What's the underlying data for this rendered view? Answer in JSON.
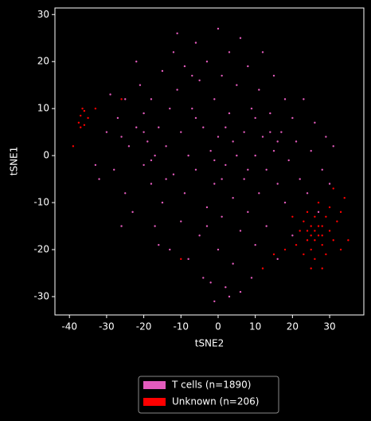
{
  "chart_data": {
    "type": "scatter",
    "xlabel": "tSNE2",
    "ylabel": "tSNE1",
    "xlim": [
      -43.9,
      39.2
    ],
    "ylim": [
      -33.9,
      31.4
    ],
    "xticks": [
      -40,
      -30,
      -20,
      -10,
      0,
      10,
      20,
      30
    ],
    "yticks": [
      -30,
      -20,
      -10,
      0,
      10,
      20,
      30
    ],
    "legend": "bottom",
    "series": [
      {
        "name": "T cells (n=1890)",
        "color": "#e35bbd",
        "x": [
          -30,
          -28,
          -27,
          -25,
          -25,
          -24,
          -23,
          -22,
          -21,
          -20,
          -20,
          -19,
          -18,
          -18,
          -17,
          -17,
          -16,
          -15,
          -15,
          -14,
          -13,
          -13,
          -12,
          -12,
          -11,
          -10,
          -10,
          -9,
          -9,
          -8,
          -8,
          -7,
          -6,
          -6,
          -5,
          -5,
          -4,
          -4,
          -3,
          -3,
          -2,
          -2,
          -1,
          -1,
          0,
          0,
          0,
          1,
          1,
          2,
          2,
          3,
          3,
          4,
          4,
          5,
          5,
          6,
          6,
          7,
          7,
          8,
          8,
          9,
          9,
          10,
          10,
          11,
          11,
          12,
          12,
          13,
          13,
          14,
          15,
          15,
          16,
          16,
          17,
          18,
          18,
          19,
          20,
          20,
          21,
          22,
          23,
          24,
          25,
          26,
          27,
          28,
          29,
          30,
          31,
          -32,
          -29,
          -26,
          -22,
          -16,
          -1,
          3,
          6,
          -11,
          -7,
          2,
          -1,
          4,
          1,
          -20,
          -18,
          16,
          14,
          -26,
          -3,
          8,
          -6,
          10,
          -14,
          -33
        ],
        "values": [
          5,
          -3,
          8,
          12,
          -8,
          2,
          -12,
          6,
          15,
          -2,
          9,
          3,
          -6,
          12,
          0,
          -15,
          6,
          18,
          -10,
          2,
          -20,
          10,
          -4,
          22,
          14,
          -14,
          5,
          19,
          -8,
          0,
          -22,
          10,
          24,
          -3,
          -17,
          16,
          6,
          -26,
          -11,
          20,
          1,
          -27,
          12,
          -6,
          -20,
          27,
          4,
          -13,
          17,
          -2,
          -28,
          9,
          22,
          -9,
          -23,
          15,
          0,
          -16,
          25,
          5,
          -5,
          19,
          -12,
          -26,
          10,
          0,
          -19,
          14,
          -8,
          22,
          4,
          -3,
          -15,
          9,
          1,
          17,
          -6,
          -22,
          5,
          12,
          -10,
          -1,
          8,
          -17,
          3,
          -5,
          12,
          -8,
          1,
          7,
          -12,
          -3,
          4,
          -6,
          2,
          -5,
          13,
          -15,
          20,
          -19,
          -31,
          -30,
          -29,
          26,
          17,
          6,
          -1,
          3,
          -5,
          5,
          -1,
          3,
          5,
          4,
          -15,
          -3,
          8,
          8,
          -5,
          -2
        ]
      },
      {
        "name": "Unknown (n=206)",
        "color": "#ff0000",
        "x": [
          -39,
          -37.5,
          -37,
          -36.5,
          -36,
          -37,
          -35,
          -36,
          -33,
          22,
          23,
          24,
          24,
          25,
          25,
          26,
          26,
          26,
          27,
          27,
          28,
          28,
          29,
          29,
          30,
          30,
          31,
          32,
          33,
          34,
          23,
          21,
          25,
          28,
          31,
          35,
          18,
          20,
          15,
          24,
          26,
          27,
          25,
          28,
          -26,
          12,
          33,
          -10
        ],
        "values": [
          2,
          7,
          8.5,
          10,
          6.5,
          6,
          8,
          9.5,
          10,
          -16,
          -14,
          -18,
          -12,
          -15,
          -20,
          -16,
          -13,
          -22,
          -17,
          -10,
          -15,
          -19,
          -13,
          -21,
          -16,
          -11,
          -18,
          -14,
          -20,
          -9,
          -21,
          -19,
          -24,
          -24,
          -7,
          -18,
          -20,
          -13,
          -21,
          -16,
          -18,
          -15,
          -17,
          -17,
          12,
          -24,
          -12,
          -22
        ]
      }
    ]
  }
}
